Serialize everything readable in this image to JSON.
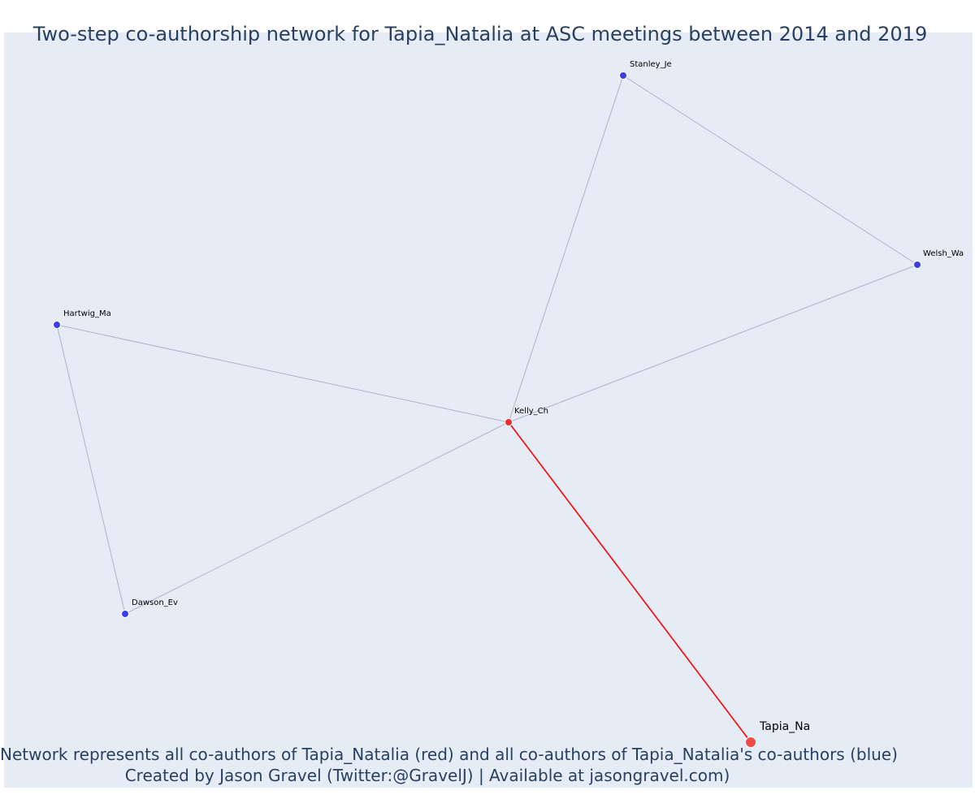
{
  "title": "Two-step co-authorship network for Tapia_Natalia at ASC meetings between 2014 and 2019",
  "caption": {
    "line1": "Network represents all co-authors of Tapia_Natalia (red) and all co-authors of Tapia_Natalia's co-authors (blue)",
    "line2": "Created by Jason Gravel (Twitter:@GravelJ) | Available at jasongravel.com)"
  },
  "colors": {
    "background": "#e5ecf6",
    "focal_node": "#ef4b4b",
    "coauthor_node": "#ef2b2b",
    "second_step_node": "#3d3de8",
    "focal_edge": "#ff0000",
    "other_edge": "#b0b3c4"
  },
  "nodes": [
    {
      "id": "Tapia_Na",
      "label": "Tapia_Na",
      "group": "focal"
    },
    {
      "id": "Kelly_Ch",
      "label": "Kelly_Ch",
      "group": "coauthor"
    },
    {
      "id": "Stanley_Je",
      "label": "Stanley_Je",
      "group": "second_step"
    },
    {
      "id": "Welsh_Wa",
      "label": "Welsh_Wa",
      "group": "second_step"
    },
    {
      "id": "Hartwig_Ma",
      "label": "Hartwig_Ma",
      "group": "second_step"
    },
    {
      "id": "Dawson_Ev",
      "label": "Dawson_Ev",
      "group": "second_step"
    }
  ],
  "edges": [
    {
      "source": "Tapia_Na",
      "target": "Kelly_Ch",
      "focal": true
    },
    {
      "source": "Kelly_Ch",
      "target": "Stanley_Je",
      "focal": false
    },
    {
      "source": "Kelly_Ch",
      "target": "Welsh_Wa",
      "focal": false
    },
    {
      "source": "Kelly_Ch",
      "target": "Hartwig_Ma",
      "focal": false
    },
    {
      "source": "Kelly_Ch",
      "target": "Dawson_Ev",
      "focal": false
    },
    {
      "source": "Stanley_Je",
      "target": "Welsh_Wa",
      "focal": false
    },
    {
      "source": "Hartwig_Ma",
      "target": "Dawson_Ev",
      "focal": false
    }
  ]
}
